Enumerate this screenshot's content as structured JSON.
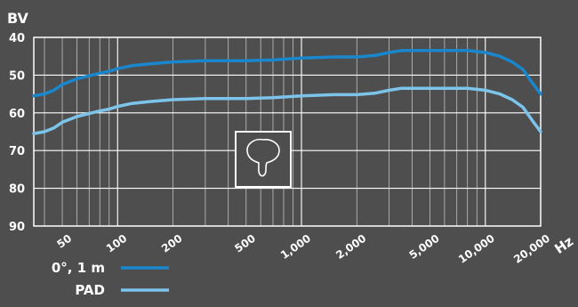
{
  "chart_data": {
    "type": "line",
    "title": "",
    "ylabel": "BV",
    "xlabel": "Hz",
    "x_scale": "log",
    "xlim": [
      35,
      20000
    ],
    "ylim": [
      40,
      90
    ],
    "y_inverted": true,
    "y_ticks": [
      40,
      50,
      60,
      70,
      80,
      90
    ],
    "x_tick_labels": [
      {
        "value": 50,
        "label": "50"
      },
      {
        "value": 100,
        "label": "100"
      },
      {
        "value": 200,
        "label": "200"
      },
      {
        "value": 500,
        "label": "500"
      },
      {
        "value": 1000,
        "label": "1,000"
      },
      {
        "value": 2000,
        "label": "2,000"
      },
      {
        "value": 5000,
        "label": "5,000"
      },
      {
        "value": 10000,
        "label": "10,000"
      },
      {
        "value": 20000,
        "label": "20,000"
      }
    ],
    "grid": true,
    "legend_position": "bottom-left",
    "icon": "cardioid-polar-pattern-icon",
    "series": [
      {
        "name": "0°, 1 m",
        "color": "#1a86cc",
        "points": [
          [
            35,
            55.5
          ],
          [
            40,
            55
          ],
          [
            45,
            54
          ],
          [
            50,
            52.5
          ],
          [
            60,
            51
          ],
          [
            70,
            50.2
          ],
          [
            80,
            49.5
          ],
          [
            90,
            49
          ],
          [
            100,
            48.3
          ],
          [
            120,
            47.5
          ],
          [
            150,
            47
          ],
          [
            200,
            46.5
          ],
          [
            300,
            46.2
          ],
          [
            500,
            46.2
          ],
          [
            700,
            46
          ],
          [
            1000,
            45.5
          ],
          [
            1500,
            45.2
          ],
          [
            2000,
            45.2
          ],
          [
            2500,
            44.8
          ],
          [
            3000,
            44
          ],
          [
            3500,
            43.5
          ],
          [
            5000,
            43.5
          ],
          [
            8000,
            43.5
          ],
          [
            10000,
            44
          ],
          [
            12000,
            45
          ],
          [
            14000,
            46.5
          ],
          [
            16000,
            48.5
          ],
          [
            18000,
            52
          ],
          [
            20000,
            55
          ]
        ]
      },
      {
        "name": "PAD",
        "color": "#7cc4ea",
        "points": [
          [
            35,
            65.5
          ],
          [
            40,
            65
          ],
          [
            45,
            64
          ],
          [
            50,
            62.5
          ],
          [
            60,
            61
          ],
          [
            70,
            60.2
          ],
          [
            80,
            59.5
          ],
          [
            90,
            59
          ],
          [
            100,
            58.3
          ],
          [
            120,
            57.5
          ],
          [
            150,
            57
          ],
          [
            200,
            56.5
          ],
          [
            300,
            56.2
          ],
          [
            500,
            56.2
          ],
          [
            700,
            56
          ],
          [
            1000,
            55.5
          ],
          [
            1500,
            55.2
          ],
          [
            2000,
            55.2
          ],
          [
            2500,
            54.8
          ],
          [
            3000,
            54
          ],
          [
            3500,
            53.5
          ],
          [
            5000,
            53.5
          ],
          [
            8000,
            53.5
          ],
          [
            10000,
            54
          ],
          [
            12000,
            55
          ],
          [
            14000,
            56.5
          ],
          [
            16000,
            58.5
          ],
          [
            18000,
            62
          ],
          [
            20000,
            65
          ]
        ]
      }
    ]
  }
}
